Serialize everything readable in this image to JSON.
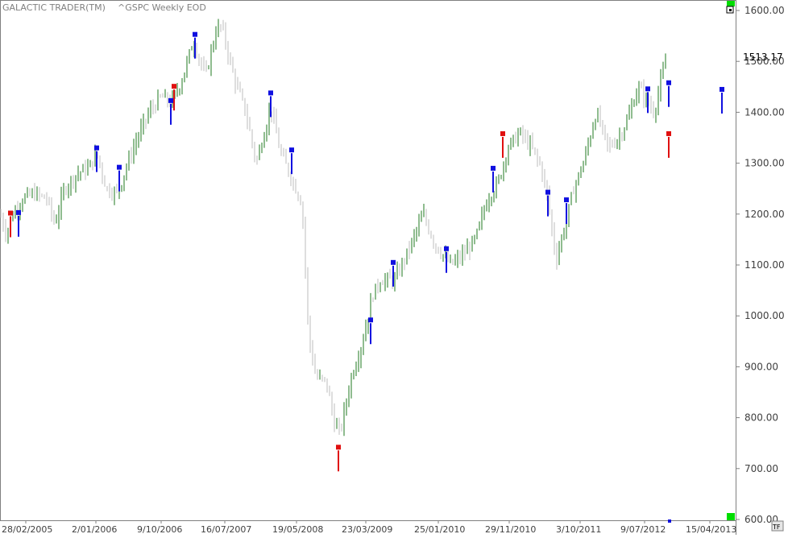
{
  "app": {
    "title": "GALACTIC TRADER(TM)",
    "symbol": "^GSPC Weekly EOD",
    "tf_label": "TF"
  },
  "colors": {
    "up_bar": "#1f7a1f",
    "down_bar": "#bdbdbd",
    "blue_marker": "#1010e0",
    "red_marker": "#e01010",
    "green_box": "#00dd00",
    "last_price_text": "#000000"
  },
  "chart_data": {
    "type": "ohlc",
    "title": "^GSPC Weekly EOD",
    "ylim": [
      600,
      1600
    ],
    "y_ticks": [
      "1600.00",
      "1500.00",
      "1400.00",
      "1300.00",
      "1200.00",
      "1100.00",
      "1000.00",
      "900.00",
      "800.00",
      "700.00",
      "600.00"
    ],
    "x_ticks": [
      "28/02/2005",
      "2/01/2006",
      "9/10/2006",
      "16/07/2007",
      "19/05/2008",
      "23/03/2009",
      "25/01/2010",
      "29/11/2010",
      "3/10/2011",
      "9/07/2012",
      "15/04/2013"
    ],
    "last_price": "1513.17",
    "price_path": [
      [
        0,
        1200
      ],
      [
        8,
        1160
      ],
      [
        16,
        1200
      ],
      [
        28,
        1230
      ],
      [
        42,
        1240
      ],
      [
        58,
        1230
      ],
      [
        68,
        1180
      ],
      [
        80,
        1250
      ],
      [
        96,
        1280
      ],
      [
        110,
        1290
      ],
      [
        120,
        1320
      ],
      [
        132,
        1250
      ],
      [
        146,
        1240
      ],
      [
        156,
        1290
      ],
      [
        168,
        1340
      ],
      [
        185,
        1400
      ],
      [
        200,
        1430
      ],
      [
        213,
        1420
      ],
      [
        225,
        1460
      ],
      [
        240,
        1540
      ],
      [
        255,
        1470
      ],
      [
        268,
        1560
      ],
      [
        275,
        1570
      ],
      [
        290,
        1470
      ],
      [
        305,
        1400
      ],
      [
        318,
        1300
      ],
      [
        336,
        1410
      ],
      [
        348,
        1320
      ],
      [
        362,
        1270
      ],
      [
        375,
        1220
      ],
      [
        383,
        960
      ],
      [
        392,
        880
      ],
      [
        405,
        870
      ],
      [
        415,
        790
      ],
      [
        422,
        770
      ],
      [
        436,
        880
      ],
      [
        450,
        950
      ],
      [
        462,
        1040
      ],
      [
        472,
        1070
      ],
      [
        490,
        1070
      ],
      [
        510,
        1140
      ],
      [
        525,
        1200
      ],
      [
        540,
        1140
      ],
      [
        560,
        1100
      ],
      [
        575,
        1120
      ],
      [
        590,
        1150
      ],
      [
        605,
        1230
      ],
      [
        618,
        1260
      ],
      [
        630,
        1330
      ],
      [
        645,
        1360
      ],
      [
        660,
        1330
      ],
      [
        672,
        1290
      ],
      [
        680,
        1230
      ],
      [
        690,
        1110
      ],
      [
        703,
        1190
      ],
      [
        712,
        1250
      ],
      [
        724,
        1300
      ],
      [
        740,
        1400
      ],
      [
        755,
        1330
      ],
      [
        768,
        1350
      ],
      [
        780,
        1390
      ],
      [
        792,
        1450
      ],
      [
        804,
        1420
      ],
      [
        812,
        1400
      ],
      [
        820,
        1460
      ],
      [
        828,
        1510
      ]
    ],
    "markers": [
      {
        "date_index": 3,
        "price": 1202,
        "color": "red"
      },
      {
        "date_index": 5,
        "price": 1203,
        "color": "blue"
      },
      {
        "date_index": 28,
        "price": 1330,
        "color": "blue"
      },
      {
        "date_index": 35,
        "price": 1292,
        "color": "blue"
      },
      {
        "date_index": 53,
        "price": 1423,
        "color": "blue"
      },
      {
        "date_index": 54,
        "price": 1451,
        "color": "red"
      },
      {
        "date_index": 60,
        "price": 1553,
        "color": "blue"
      },
      {
        "date_index": 84,
        "price": 1438,
        "color": "blue"
      },
      {
        "date_index": 91,
        "price": 1326,
        "color": "blue"
      },
      {
        "date_index": 105,
        "price": 742,
        "color": "red"
      },
      {
        "date_index": 115,
        "price": 992,
        "color": "blue"
      },
      {
        "date_index": 122,
        "price": 1105,
        "color": "blue"
      },
      {
        "date_index": 139,
        "price": 1132,
        "color": "blue"
      },
      {
        "date_index": 153,
        "price": 1290,
        "color": "blue"
      },
      {
        "date_index": 156,
        "price": 1358,
        "color": "red"
      },
      {
        "date_index": 170,
        "price": 1243,
        "color": "blue"
      },
      {
        "date_index": 176,
        "price": 1228,
        "color": "blue"
      },
      {
        "date_index": 201,
        "price": 1446,
        "color": "blue"
      },
      {
        "date_index": 207,
        "price": 1458,
        "color": "blue"
      },
      {
        "date_index": 207,
        "price": 1358,
        "color": "red"
      },
      {
        "date_index": 224,
        "price": 1445,
        "color": "blue"
      }
    ]
  }
}
